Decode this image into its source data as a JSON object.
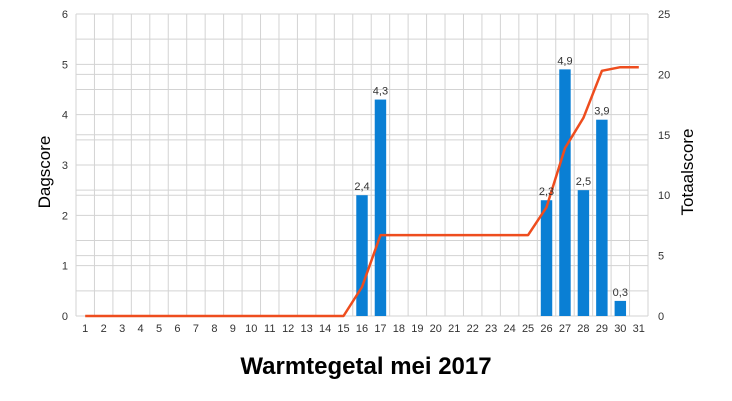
{
  "chart_data": {
    "type": "bar",
    "title": "Warmtegetal mei 2017",
    "xlabel": "",
    "ylabel": "Dagscore",
    "y2label": "Totaalscore",
    "ylim": [
      0,
      6
    ],
    "y2lim": [
      0,
      25
    ],
    "yticks": [
      0,
      1,
      2,
      3,
      4,
      5,
      6
    ],
    "y2ticks": [
      0,
      5,
      10,
      15,
      20,
      25
    ],
    "grid": true,
    "categories": [
      1,
      2,
      3,
      4,
      5,
      6,
      7,
      8,
      9,
      10,
      11,
      12,
      13,
      14,
      15,
      16,
      17,
      18,
      19,
      20,
      21,
      22,
      23,
      24,
      25,
      26,
      27,
      28,
      29,
      30,
      31
    ],
    "series": [
      {
        "type": "bar",
        "axis": "left",
        "values": [
          0,
          0,
          0,
          0,
          0,
          0,
          0,
          0,
          0,
          0,
          0,
          0,
          0,
          0,
          0,
          2.4,
          4.3,
          0,
          0,
          0,
          0,
          0,
          0,
          0,
          0,
          2.3,
          4.9,
          2.5,
          3.9,
          0.3,
          0
        ],
        "labels": [
          "",
          "",
          "",
          "",
          "",
          "",
          "",
          "",
          "",
          "",
          "",
          "",
          "",
          "",
          "",
          "2,4",
          "4,3",
          "",
          "",
          "",
          "",
          "",
          "",
          "",
          "",
          "2,3",
          "4,9",
          "2,5",
          "3,9",
          "0,3",
          ""
        ]
      },
      {
        "type": "line",
        "axis": "right",
        "values": [
          0,
          0,
          0,
          0,
          0,
          0,
          0,
          0,
          0,
          0,
          0,
          0,
          0,
          0,
          0,
          2.4,
          6.7,
          6.7,
          6.7,
          6.7,
          6.7,
          6.7,
          6.7,
          6.7,
          6.7,
          9.0,
          13.9,
          16.4,
          20.3,
          20.6,
          20.6
        ]
      }
    ],
    "colors": {
      "bar": "#0a7fd4",
      "line": "#ee4d1e",
      "grid": "#d3d3d3"
    }
  }
}
